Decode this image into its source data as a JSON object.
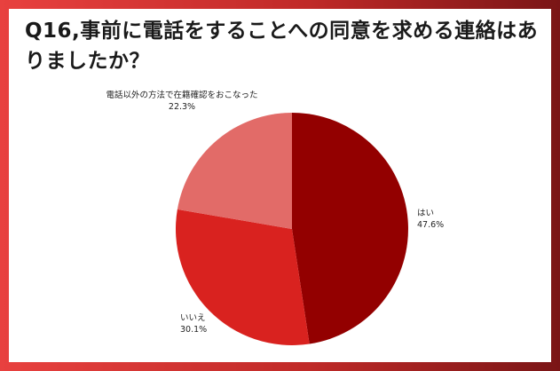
{
  "title": "Q16,事前に電話をすることへの同意を求める連絡はありましたか？",
  "colors": {
    "frame": "#d63331",
    "slice_1": "#930000",
    "slice_2": "#d9221f",
    "slice_3": "#e26b68"
  },
  "chart_data": {
    "type": "pie",
    "start_angle_deg": 0,
    "direction": "clockwise",
    "slices": [
      {
        "label": "はい",
        "value": 47.6,
        "display": "47.6%",
        "color": "#930000"
      },
      {
        "label": "いいえ",
        "value": 30.1,
        "display": "30.1%",
        "color": "#d9221f"
      },
      {
        "label": "電話以外の方法で在籍確認をおこなった",
        "value": 22.3,
        "display": "22.3%",
        "color": "#e26b68"
      }
    ]
  }
}
